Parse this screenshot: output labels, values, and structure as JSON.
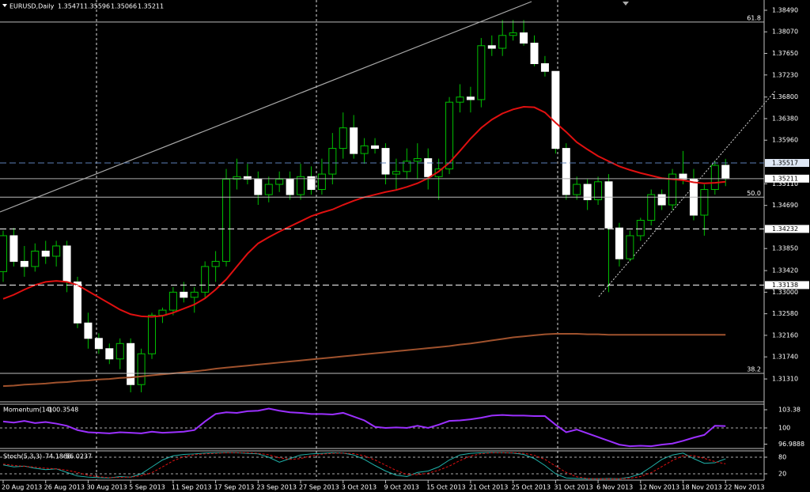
{
  "chart_data": [
    {
      "type": "candlestick",
      "title": "EURUSD,Daily",
      "categories": [
        "20 Aug 2013",
        null,
        null,
        null,
        "26 Aug 2013",
        null,
        null,
        null,
        "30 Aug 2013",
        null,
        null,
        null,
        "5 Sep 2013",
        null,
        null,
        null,
        "11 Sep 2013",
        null,
        null,
        null,
        "17 Sep 2013",
        null,
        null,
        null,
        "23 Sep 2013",
        null,
        null,
        null,
        "27 Sep 2013",
        null,
        null,
        null,
        "3 Oct 2013",
        null,
        null,
        null,
        "9 Oct 2013",
        null,
        null,
        null,
        "15 Oct 2013",
        null,
        null,
        null,
        "21 Oct 2013",
        null,
        null,
        null,
        "25 Oct 2013",
        null,
        null,
        null,
        "31 Oct 2013",
        null,
        null,
        null,
        "6 Nov 2013",
        null,
        null,
        null,
        "12 Nov 2013",
        null,
        null,
        null,
        "18 Nov 2013",
        null,
        null,
        null,
        "22 Nov 2013"
      ],
      "open": [
        1.334,
        1.341,
        1.336,
        1.335,
        1.338,
        1.337,
        1.339,
        1.332,
        1.324,
        1.321,
        1.319,
        1.317,
        1.32,
        1.312,
        1.318,
        1.3255,
        1.3265,
        1.33,
        1.329,
        1.33,
        1.335,
        1.336,
        1.352,
        1.3525,
        1.352,
        1.349,
        1.351,
        1.352,
        1.349,
        1.3525,
        1.35,
        1.353,
        1.358,
        1.362,
        1.357,
        1.3585,
        1.358,
        1.353,
        1.3535,
        1.3555,
        1.356,
        1.3525,
        1.354,
        1.367,
        1.368,
        1.3675,
        1.378,
        1.3775,
        1.38,
        1.3805,
        1.3785,
        1.3745,
        1.373,
        1.358,
        1.349,
        1.351,
        1.348,
        1.3515,
        1.3425,
        1.3365,
        1.341,
        1.344,
        1.349,
        1.347,
        1.353,
        1.352,
        1.345,
        1.35,
        1.35471
      ],
      "high": [
        1.342,
        1.3425,
        1.339,
        1.3395,
        1.34,
        1.34,
        1.34,
        1.333,
        1.326,
        1.322,
        1.32,
        1.321,
        1.321,
        1.319,
        1.326,
        1.327,
        1.331,
        1.332,
        1.331,
        1.336,
        1.338,
        1.354,
        1.356,
        1.355,
        1.3535,
        1.3525,
        1.3535,
        1.3535,
        1.355,
        1.3545,
        1.356,
        1.361,
        1.365,
        1.3645,
        1.36,
        1.36,
        1.359,
        1.356,
        1.358,
        1.359,
        1.358,
        1.356,
        1.368,
        1.3705,
        1.37,
        1.3795,
        1.38,
        1.383,
        1.383,
        1.383,
        1.38,
        1.376,
        1.373,
        1.359,
        1.3525,
        1.352,
        1.3525,
        1.353,
        1.3435,
        1.342,
        1.3445,
        1.35,
        1.35,
        1.354,
        1.3575,
        1.354,
        1.351,
        1.3555,
        1.35596
      ],
      "low": [
        1.332,
        1.335,
        1.333,
        1.334,
        1.3355,
        1.335,
        1.33,
        1.323,
        1.319,
        1.318,
        1.316,
        1.315,
        1.3105,
        1.3105,
        1.317,
        1.324,
        1.3255,
        1.328,
        1.326,
        1.329,
        1.332,
        1.335,
        1.35,
        1.351,
        1.347,
        1.3475,
        1.3495,
        1.348,
        1.348,
        1.349,
        1.349,
        1.351,
        1.356,
        1.356,
        1.355,
        1.357,
        1.351,
        1.35,
        1.352,
        1.352,
        1.35,
        1.348,
        1.353,
        1.365,
        1.365,
        1.366,
        1.376,
        1.376,
        1.379,
        1.378,
        1.374,
        1.372,
        1.357,
        1.348,
        1.348,
        1.346,
        1.347,
        1.33,
        1.335,
        1.336,
        1.34,
        1.343,
        1.346,
        1.346,
        1.351,
        1.344,
        1.341,
        1.349,
        1.35066
      ],
      "close": [
        1.341,
        1.336,
        1.335,
        1.338,
        1.337,
        1.339,
        1.332,
        1.324,
        1.321,
        1.319,
        1.317,
        1.32,
        1.312,
        1.318,
        1.3255,
        1.3265,
        1.33,
        1.329,
        1.33,
        1.335,
        1.336,
        1.352,
        1.3525,
        1.352,
        1.349,
        1.351,
        1.352,
        1.349,
        1.3525,
        1.35,
        1.353,
        1.358,
        1.362,
        1.357,
        1.3585,
        1.358,
        1.353,
        1.3535,
        1.3555,
        1.356,
        1.3525,
        1.354,
        1.367,
        1.368,
        1.3675,
        1.378,
        1.3775,
        1.38,
        1.3805,
        1.3785,
        1.3745,
        1.373,
        1.358,
        1.349,
        1.351,
        1.348,
        1.3515,
        1.3425,
        1.3365,
        1.341,
        1.344,
        1.349,
        1.347,
        1.353,
        1.352,
        1.345,
        1.35,
        1.3547,
        1.35211
      ],
      "up_color": "#00c000",
      "down_color": "#ffffff",
      "overlays": [
        {
          "color": "#e01010",
          "values": [
            1.3287,
            1.3295,
            1.3305,
            1.3314,
            1.332,
            1.3322,
            1.332,
            1.3314,
            1.3302,
            1.329,
            1.3278,
            1.3266,
            1.3257,
            1.3253,
            1.3252,
            1.3254,
            1.326,
            1.3268,
            1.3276,
            1.3288,
            1.3305,
            1.3325,
            1.335,
            1.3375,
            1.3395,
            1.3407,
            1.3418,
            1.3428,
            1.3438,
            1.3448,
            1.3455,
            1.3461,
            1.347,
            1.3478,
            1.3485,
            1.349,
            1.3495,
            1.3499,
            1.3505,
            1.3512,
            1.3522,
            1.3535,
            1.3552,
            1.3575,
            1.3599,
            1.362,
            1.3636,
            1.3648,
            1.3656,
            1.3661,
            1.366,
            1.365,
            1.363,
            1.3612,
            1.3592,
            1.3578,
            1.3565,
            1.3555,
            1.3545,
            1.3538,
            1.3532,
            1.3527,
            1.3522,
            1.352,
            1.3518,
            1.3514,
            1.3512,
            1.3513,
            1.3515
          ]
        },
        {
          "color": "#a0522d",
          "values": [
            1.3117,
            1.3118,
            1.312,
            1.3121,
            1.3122,
            1.3124,
            1.3125,
            1.3127,
            1.3128,
            1.313,
            1.3131,
            1.3133,
            1.3134,
            1.3136,
            1.3138,
            1.314,
            1.3142,
            1.3144,
            1.3146,
            1.3148,
            1.3151,
            1.3153,
            1.3155,
            1.3157,
            1.3159,
            1.3161,
            1.3163,
            1.3165,
            1.3167,
            1.3169,
            1.3171,
            1.3173,
            1.3175,
            1.3177,
            1.3179,
            1.3181,
            1.3183,
            1.3185,
            1.3187,
            1.3189,
            1.3191,
            1.3193,
            1.3195,
            1.3198,
            1.32,
            1.3203,
            1.3206,
            1.3209,
            1.3212,
            1.3214,
            1.3216,
            1.3218,
            1.3219,
            1.3219,
            1.3219,
            1.3218,
            1.3218,
            1.3217,
            1.3217,
            1.3217,
            1.3217,
            1.3217,
            1.3217,
            1.3217,
            1.3217,
            1.3217,
            1.3217,
            1.3217,
            1.3217
          ]
        }
      ],
      "levels": [
        {
          "value": 1.35517,
          "color": "#5b7fb8"
        },
        {
          "value": 1.34232,
          "color": "#ffffff"
        },
        {
          "value": 1.33138,
          "color": "#ffffff"
        }
      ],
      "fibo": [
        {
          "label": "61.8",
          "value": 1.3826
        },
        {
          "label": "50.0",
          "value": 1.3485
        },
        {
          "label": "38.2",
          "value": 1.3142
        }
      ],
      "ylim": [
        1.3088,
        1.3869
      ],
      "yticks": [
        {
          "value": 1.3849,
          "label": "1.38490"
        },
        {
          "value": 1.3807,
          "label": "1.38070"
        },
        {
          "value": 1.3765,
          "label": "1.37650"
        },
        {
          "value": 1.3723,
          "label": "1.37230"
        },
        {
          "value": 1.368,
          "label": "1.36800"
        },
        {
          "value": 1.3638,
          "label": "1.36380"
        },
        {
          "value": 1.3596,
          "label": "1.35960"
        },
        {
          "value": 1.3511,
          "label": "1.35110"
        },
        {
          "value": 1.3469,
          "label": "1.34690"
        },
        {
          "value": 1.3385,
          "label": "1.33850"
        },
        {
          "value": 1.3342,
          "label": "1.33420"
        },
        {
          "value": 1.33,
          "label": "1.33000"
        },
        {
          "value": 1.3258,
          "label": "1.32580"
        },
        {
          "value": 1.3216,
          "label": "1.32160"
        },
        {
          "value": 1.3174,
          "label": "1.31740"
        },
        {
          "value": 1.3131,
          "label": "1.31310"
        }
      ]
    },
    {
      "type": "line",
      "title": "Momentum(14)",
      "series": [
        {
          "color": "#9b30ff",
          "values": [
            101.2,
            101.0,
            101.3,
            100.9,
            101.1,
            100.8,
            100.4,
            99.6,
            99.2,
            99.1,
            99.0,
            99.2,
            99.1,
            99.0,
            99.3,
            99.1,
            99.2,
            99.3,
            99.6,
            101.2,
            102.6,
            102.9,
            102.8,
            103.1,
            103.2,
            103.6,
            103.2,
            102.9,
            102.8,
            102.6,
            102.6,
            102.5,
            102.8,
            102.1,
            101.4,
            100.2,
            100.0,
            100.1,
            100.0,
            100.4,
            100.0,
            100.6,
            101.3,
            101.4,
            101.6,
            101.9,
            102.3,
            102.4,
            102.3,
            102.3,
            102.2,
            102.2,
            100.6,
            99.2,
            99.7,
            99.0,
            98.3,
            97.6,
            96.9,
            96.6,
            96.7,
            96.6,
            96.9,
            97.1,
            97.6,
            98.2,
            98.7,
            100.4,
            100.3548
          ]
        }
      ],
      "ylim": [
        96.18,
        104.41
      ],
      "yticks": [
        103.38,
        100,
        96.9888
      ],
      "grid": [
        100
      ]
    },
    {
      "type": "line",
      "title": "Stoch(5,3,3)",
      "series": [
        {
          "color": "#20b2aa",
          "values": [
            52,
            45,
            48,
            40,
            35,
            38,
            25,
            12,
            8,
            6,
            5,
            10,
            8,
            20,
            45,
            70,
            85,
            90,
            92,
            95,
            96,
            97,
            96,
            94,
            92,
            80,
            62,
            75,
            88,
            92,
            94,
            96,
            95,
            88,
            72,
            50,
            30,
            15,
            10,
            25,
            30,
            45,
            70,
            88,
            94,
            96,
            97,
            96,
            95,
            90,
            75,
            50,
            20,
            5,
            3,
            2,
            2,
            3,
            2,
            8,
            20,
            45,
            72,
            88,
            95,
            75,
            58,
            60,
            74.1866
          ]
        },
        {
          "color": "#e01010",
          "dashed": true,
          "values": [
            55,
            50,
            47,
            44,
            40,
            38,
            33,
            25,
            15,
            9,
            6,
            7,
            8,
            13,
            24,
            45,
            67,
            82,
            89,
            92,
            94,
            96,
            96,
            96,
            94,
            89,
            78,
            72,
            75,
            85,
            91,
            94,
            95,
            93,
            85,
            70,
            51,
            32,
            18,
            17,
            22,
            33,
            48,
            68,
            84,
            93,
            96,
            96,
            96,
            94,
            87,
            72,
            48,
            25,
            9,
            3,
            2,
            2,
            2,
            4,
            10,
            24,
            46,
            68,
            85,
            86,
            76,
            64,
            56.0237
          ]
        }
      ],
      "ylim": [
        -2.9,
        102.9
      ],
      "yticks": [
        80,
        20
      ],
      "grid": [
        80,
        20
      ]
    }
  ]
}
